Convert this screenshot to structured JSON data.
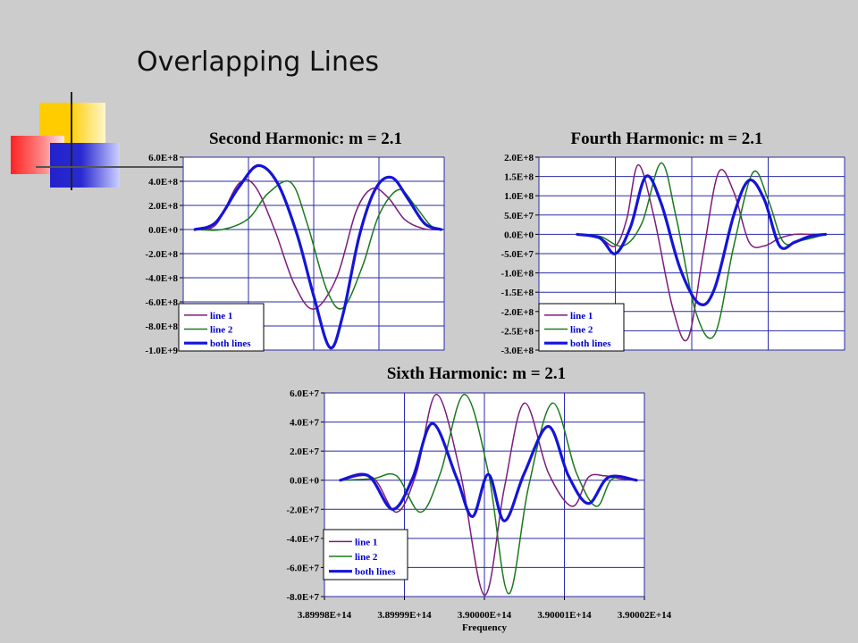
{
  "slide": {
    "title": "Overlapping Lines"
  },
  "legend_labels": [
    "line 1",
    "line 2",
    "both lines"
  ],
  "colors": {
    "line1": "#7b1c7b",
    "line2": "#1a7a1a",
    "both": "#1414d8",
    "grid": "#2a2aa8",
    "plot_bg": "#ffffff"
  },
  "decoration": {
    "squares": [
      "#ffcc00",
      "#ff3333",
      "#3333cc"
    ]
  },
  "chart_data": [
    {
      "type": "line",
      "title": "Second Harmonic: m = 2.1",
      "yticks": [
        "6.0E+8",
        "4.0E+8",
        "2.0E+8",
        "0.0E+0",
        "-2.0E+8",
        "-4.0E+8",
        "-6.0E+8",
        "-8.0E+8",
        "-1.0E+9"
      ],
      "ylim": [
        -1000000000.0,
        600000000.0
      ],
      "x_range": [
        0,
        4
      ],
      "series": [
        {
          "name": "line 1",
          "x": [
            0.18,
            0.5,
            0.85,
            1.1,
            1.4,
            1.7,
            2.0,
            2.35,
            2.65,
            2.9,
            3.15,
            3.4,
            3.7,
            4.0,
            4.0
          ],
          "y": [
            0,
            40000000.0,
            380000000.0,
            360000000.0,
            0,
            -450000000.0,
            -660000000.0,
            -400000000.0,
            150000000.0,
            340000000.0,
            260000000.0,
            80000000.0,
            5000000.0,
            0,
            0
          ]
        },
        {
          "name": "line 2",
          "x": [
            0.18,
            0.6,
            1.0,
            1.3,
            1.65,
            1.9,
            2.2,
            2.45,
            2.75,
            3.0,
            3.3,
            3.55,
            3.8,
            4.0
          ],
          "y": [
            0,
            0,
            90000000.0,
            300000000.0,
            390000000.0,
            50000000.0,
            -500000000.0,
            -650000000.0,
            -300000000.0,
            120000000.0,
            330000000.0,
            200000000.0,
            30000000.0,
            0
          ]
        },
        {
          "name": "both lines",
          "x": [
            0.18,
            0.5,
            0.85,
            1.15,
            1.45,
            1.75,
            2.0,
            2.25,
            2.45,
            2.7,
            2.95,
            3.2,
            3.45,
            3.7,
            3.95
          ],
          "y": [
            0,
            60000000.0,
            350000000.0,
            530000000.0,
            380000000.0,
            -50000000.0,
            -550000000.0,
            -980000000.0,
            -700000000.0,
            -50000000.0,
            340000000.0,
            430000000.0,
            250000000.0,
            50000000.0,
            0
          ]
        }
      ]
    },
    {
      "type": "line",
      "title": "Fourth Harmonic: m = 2.1",
      "yticks": [
        "2.0E+8",
        "1.5E+8",
        "1.0E+8",
        "5.0E+7",
        "0.0E+0",
        "-5.0E+7",
        "-1.0E+8",
        "-1.5E+8",
        "-2.0E+8",
        "-2.5E+8",
        "-3.0E+8"
      ],
      "ylim": [
        -300000000.0,
        200000000.0
      ],
      "x_range": [
        0,
        4
      ],
      "series": [
        {
          "name": "line 1",
          "x": [
            0.5,
            0.8,
            1.0,
            1.15,
            1.3,
            1.5,
            1.75,
            1.95,
            2.15,
            2.35,
            2.55,
            2.75,
            2.95,
            3.15,
            3.35,
            3.55,
            3.75
          ],
          "y": [
            0,
            -10000000.0,
            -30000000.0,
            40000000.0,
            180000000.0,
            50000000.0,
            -190000000.0,
            -270000000.0,
            -50000000.0,
            160000000.0,
            110000000.0,
            -20000000.0,
            -30000000.0,
            -10000000.0,
            0,
            0,
            0
          ]
        },
        {
          "name": "line 2",
          "x": [
            0.5,
            0.8,
            1.1,
            1.35,
            1.6,
            1.8,
            2.05,
            2.3,
            2.55,
            2.8,
            3.0,
            3.2,
            3.45,
            3.75
          ],
          "y": [
            0,
            -5000000.0,
            -30000000.0,
            30000000.0,
            185000000.0,
            40000000.0,
            -200000000.0,
            -260000000.0,
            -30000000.0,
            160000000.0,
            90000000.0,
            -20000000.0,
            -15000000.0,
            0
          ]
        },
        {
          "name": "both lines",
          "x": [
            0.5,
            0.8,
            1.0,
            1.2,
            1.4,
            1.6,
            1.85,
            2.1,
            2.3,
            2.55,
            2.75,
            2.95,
            3.15,
            3.35,
            3.55,
            3.75
          ],
          "y": [
            0,
            -10000000.0,
            -50000000.0,
            20000000.0,
            150000000.0,
            80000000.0,
            -90000000.0,
            -180000000.0,
            -140000000.0,
            50000000.0,
            140000000.0,
            90000000.0,
            -30000000.0,
            -20000000.0,
            -5000000.0,
            0
          ]
        }
      ]
    },
    {
      "type": "line",
      "title": "Sixth Harmonic: m = 2.1",
      "xlabel": "Frequency",
      "xticks": [
        "3.89998E+14",
        "3.89999E+14",
        "3.90000E+14",
        "3.90001E+14",
        "3.90002E+14"
      ],
      "yticks": [
        "6.0E+7",
        "4.0E+7",
        "2.0E+7",
        "0.0E+0",
        "-2.0E+7",
        "-4.0E+7",
        "-6.0E+7",
        "-8.0E+7"
      ],
      "ylim": [
        -80000000.0,
        60000000.0
      ],
      "x_range": [
        389998000000000.0,
        390002000000000.0
      ],
      "series": [
        {
          "name": "line 1",
          "x": [
            389998200000000.0,
            389998600000000.0,
            389998900000000.0,
            389999150000000.0,
            389999400000000.0,
            389999700000000.0,
            390000000000000.0,
            390000250000000.0,
            390000500000000.0,
            390000800000000.0,
            390001100000000.0,
            390001300000000.0,
            390001500000000.0,
            390001700000000.0,
            390001900000000.0
          ],
          "y": [
            0,
            2000000.0,
            -22000000.0,
            5000000.0,
            59000000.0,
            5000000.0,
            -79000000.0,
            -5000000.0,
            53000000.0,
            5000000.0,
            -18000000.0,
            2000000.0,
            3000000.0,
            1000000.0,
            0
          ]
        },
        {
          "name": "line 2",
          "x": [
            389998200000000.0,
            389998600000000.0,
            389998900000000.0,
            389999200000000.0,
            389999450000000.0,
            389999750000000.0,
            390000050000000.0,
            390000300000000.0,
            390000550000000.0,
            390000850000000.0,
            390001150000000.0,
            390001400000000.0,
            390001600000000.0,
            390001900000000.0
          ],
          "y": [
            0,
            1000000.0,
            3000000.0,
            -22000000.0,
            5000000.0,
            59000000.0,
            5000000.0,
            -78000000.0,
            -5000000.0,
            53000000.0,
            5000000.0,
            -18000000.0,
            1000000.0,
            0
          ]
        },
        {
          "name": "both lines",
          "x": [
            389998200000000.0,
            389998550000000.0,
            389998850000000.0,
            389999100000000.0,
            389999350000000.0,
            389999650000000.0,
            389999850000000.0,
            390000050000000.0,
            390000250000000.0,
            390000500000000.0,
            390000800000000.0,
            390001050000000.0,
            390001300000000.0,
            390001550000000.0,
            390001900000000.0
          ],
          "y": [
            0,
            3000000.0,
            -20000000.0,
            1000000.0,
            39000000.0,
            2000000.0,
            -25000000.0,
            4000000.0,
            -28000000.0,
            5000000.0,
            37000000.0,
            3000000.0,
            -16000000.0,
            2000000.0,
            0
          ]
        }
      ]
    }
  ]
}
